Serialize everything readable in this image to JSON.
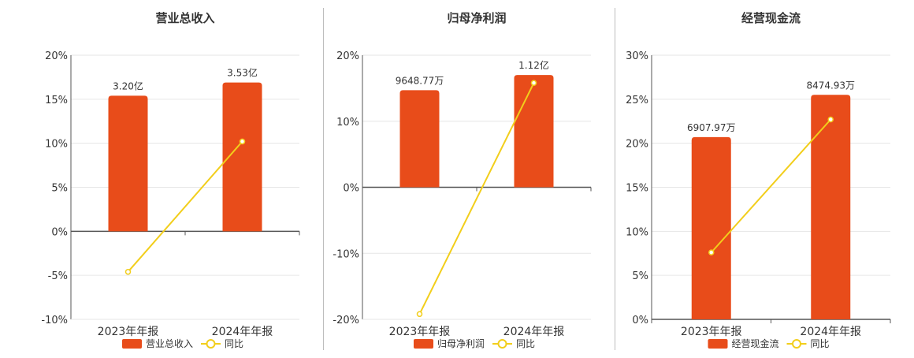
{
  "colors": {
    "bar": "#E84C1A",
    "line": "#F2CE1B",
    "grid": "#e6e6e6",
    "axis": "#555555",
    "text": "#333333"
  },
  "legend": {
    "line_label": "同比"
  },
  "chart_data": [
    {
      "type": "bar",
      "title": "营业总收入",
      "categories": [
        "2023年年报",
        "2024年年报"
      ],
      "series": [
        {
          "name": "营业总收入",
          "type": "bar",
          "values": [
            15.4,
            16.9
          ],
          "labels": [
            "3.20亿",
            "3.53亿"
          ]
        },
        {
          "name": "同比",
          "type": "line",
          "values": [
            -4.6,
            10.2
          ]
        }
      ],
      "yticks": [
        "20%",
        "15%",
        "10%",
        "5%",
        "0%",
        "-5%",
        "-10%"
      ],
      "ylim": [
        -10,
        20
      ],
      "ytick_step": 5,
      "grid": true,
      "legend_position": "bottom"
    },
    {
      "type": "bar",
      "title": "归母净利润",
      "categories": [
        "2023年年报",
        "2024年年报"
      ],
      "series": [
        {
          "name": "归母净利润",
          "type": "bar",
          "values": [
            14.7,
            17.0
          ],
          "labels": [
            "9648.77万",
            "1.12亿"
          ]
        },
        {
          "name": "同比",
          "type": "line",
          "values": [
            -19.2,
            15.8
          ]
        }
      ],
      "yticks": [
        "20%",
        "10%",
        "0%",
        "-10%",
        "-20%"
      ],
      "ylim": [
        -20,
        20
      ],
      "ytick_step": 10,
      "grid": true,
      "legend_position": "bottom"
    },
    {
      "type": "bar",
      "title": "经营现金流",
      "categories": [
        "2023年年报",
        "2024年年报"
      ],
      "series": [
        {
          "name": "经营现金流",
          "type": "bar",
          "values": [
            20.7,
            25.5
          ],
          "labels": [
            "6907.97万",
            "8474.93万"
          ]
        },
        {
          "name": "同比",
          "type": "line",
          "values": [
            7.6,
            22.7
          ]
        }
      ],
      "yticks": [
        "30%",
        "25%",
        "20%",
        "15%",
        "10%",
        "5%",
        "0%"
      ],
      "ylim": [
        0,
        30
      ],
      "ytick_step": 5,
      "grid": true,
      "legend_position": "bottom"
    }
  ]
}
